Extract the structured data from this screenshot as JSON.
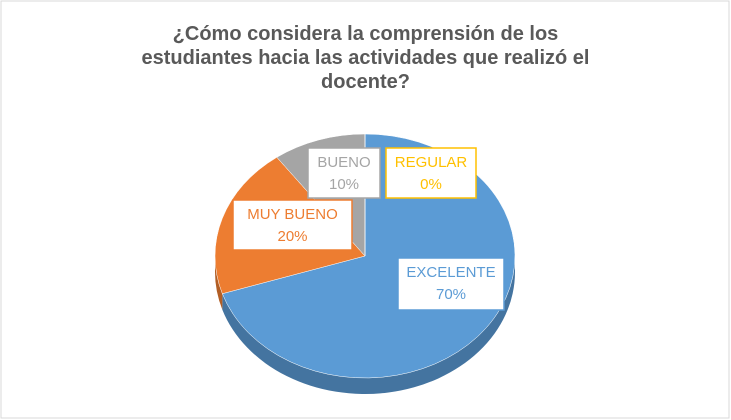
{
  "chart_data": {
    "type": "pie",
    "title": "¿Cómo considera la comprensión de los estudiantes hacia las actividades que realizó el docente?",
    "categories": [
      "EXCELENTE",
      "MUY BUENO",
      "BUENO",
      "REGULAR"
    ],
    "values": [
      70,
      20,
      10,
      0
    ],
    "value_labels": [
      "70%",
      "20%",
      "10%",
      "0%"
    ],
    "colors": [
      "#5b9bd5",
      "#ed7d31",
      "#a5a5a5",
      "#ffc000"
    ]
  }
}
